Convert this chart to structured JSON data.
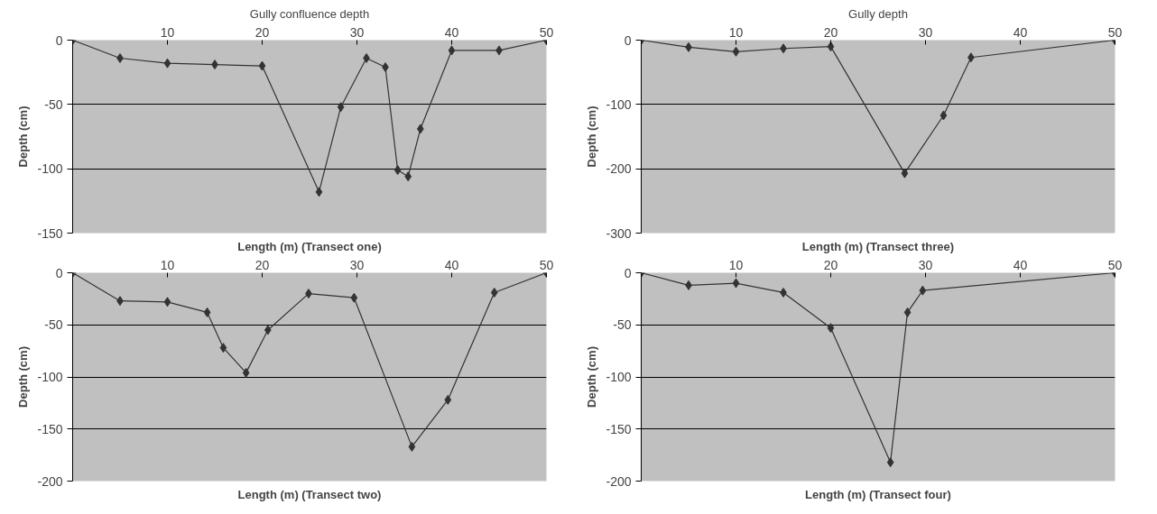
{
  "chart_data": [
    {
      "type": "line",
      "title": "Gully confluence depth",
      "xlabel": "Length (m) (Transect one)",
      "ylabel": "Depth (cm)",
      "marker": "diamond",
      "grid": "y",
      "x": [
        0,
        5,
        10,
        15,
        20,
        26,
        28.3,
        31,
        33,
        34.3,
        35.4,
        36.7,
        40,
        45,
        50
      ],
      "series": [
        {
          "color": "#333333",
          "values": [
            0,
            -14,
            -18,
            -19,
            -20,
            -118,
            -52,
            -14,
            -21,
            -101,
            -106,
            -69,
            -8,
            -8,
            0
          ]
        }
      ],
      "xlim": [
        0,
        50
      ],
      "xticks": [
        10,
        20,
        30,
        40,
        50
      ],
      "ylim": [
        -150,
        0
      ],
      "yticks": [
        -150,
        -100,
        -50,
        0
      ]
    },
    {
      "type": "line",
      "title": "Gully depth",
      "xlabel": "Length (m) (Transect three)",
      "ylabel": "Depth (cm)",
      "marker": "diamond",
      "grid": "y",
      "x": [
        0,
        5,
        10,
        15,
        20,
        27.8,
        31.9,
        34.8,
        50
      ],
      "series": [
        {
          "color": "#333333",
          "values": [
            0,
            -11,
            -18,
            -13,
            -10,
            -207,
            -117,
            -27,
            0
          ]
        }
      ],
      "xlim": [
        0,
        50
      ],
      "xticks": [
        10,
        20,
        30,
        40,
        50
      ],
      "ylim": [
        -300,
        0
      ],
      "yticks": [
        -300,
        -200,
        -100,
        0
      ]
    },
    {
      "type": "line",
      "xlabel": "Length (m) (Transect two)",
      "ylabel": "Depth (cm)",
      "marker": "diamond",
      "grid": "y",
      "x": [
        0,
        5,
        10,
        14.2,
        15.9,
        18.3,
        20.6,
        24.9,
        29.7,
        35.8,
        39.6,
        44.5,
        50
      ],
      "series": [
        {
          "color": "#333333",
          "values": [
            0,
            -27,
            -28,
            -38,
            -72,
            -96,
            -55,
            -20,
            -24,
            -167,
            -122,
            -19,
            0
          ]
        }
      ],
      "xlim": [
        0,
        50
      ],
      "xticks": [
        10,
        20,
        30,
        40,
        50
      ],
      "ylim": [
        -200,
        0
      ],
      "yticks": [
        -200,
        -150,
        -100,
        -50,
        0
      ]
    },
    {
      "type": "line",
      "xlabel": "Length (m) (Transect four)",
      "ylabel": "Depth (cm)",
      "marker": "diamond",
      "grid": "y",
      "x": [
        0,
        5,
        10,
        15,
        20,
        26.3,
        28.1,
        29.7,
        50
      ],
      "series": [
        {
          "color": "#333333",
          "values": [
            0,
            -12,
            -10,
            -19,
            -53,
            -182,
            -38,
            -17,
            0
          ]
        }
      ],
      "xlim": [
        0,
        50
      ],
      "xticks": [
        10,
        20,
        30,
        40,
        50
      ],
      "ylim": [
        -200,
        0
      ],
      "yticks": [
        -200,
        -150,
        -100,
        -50,
        0
      ]
    }
  ]
}
